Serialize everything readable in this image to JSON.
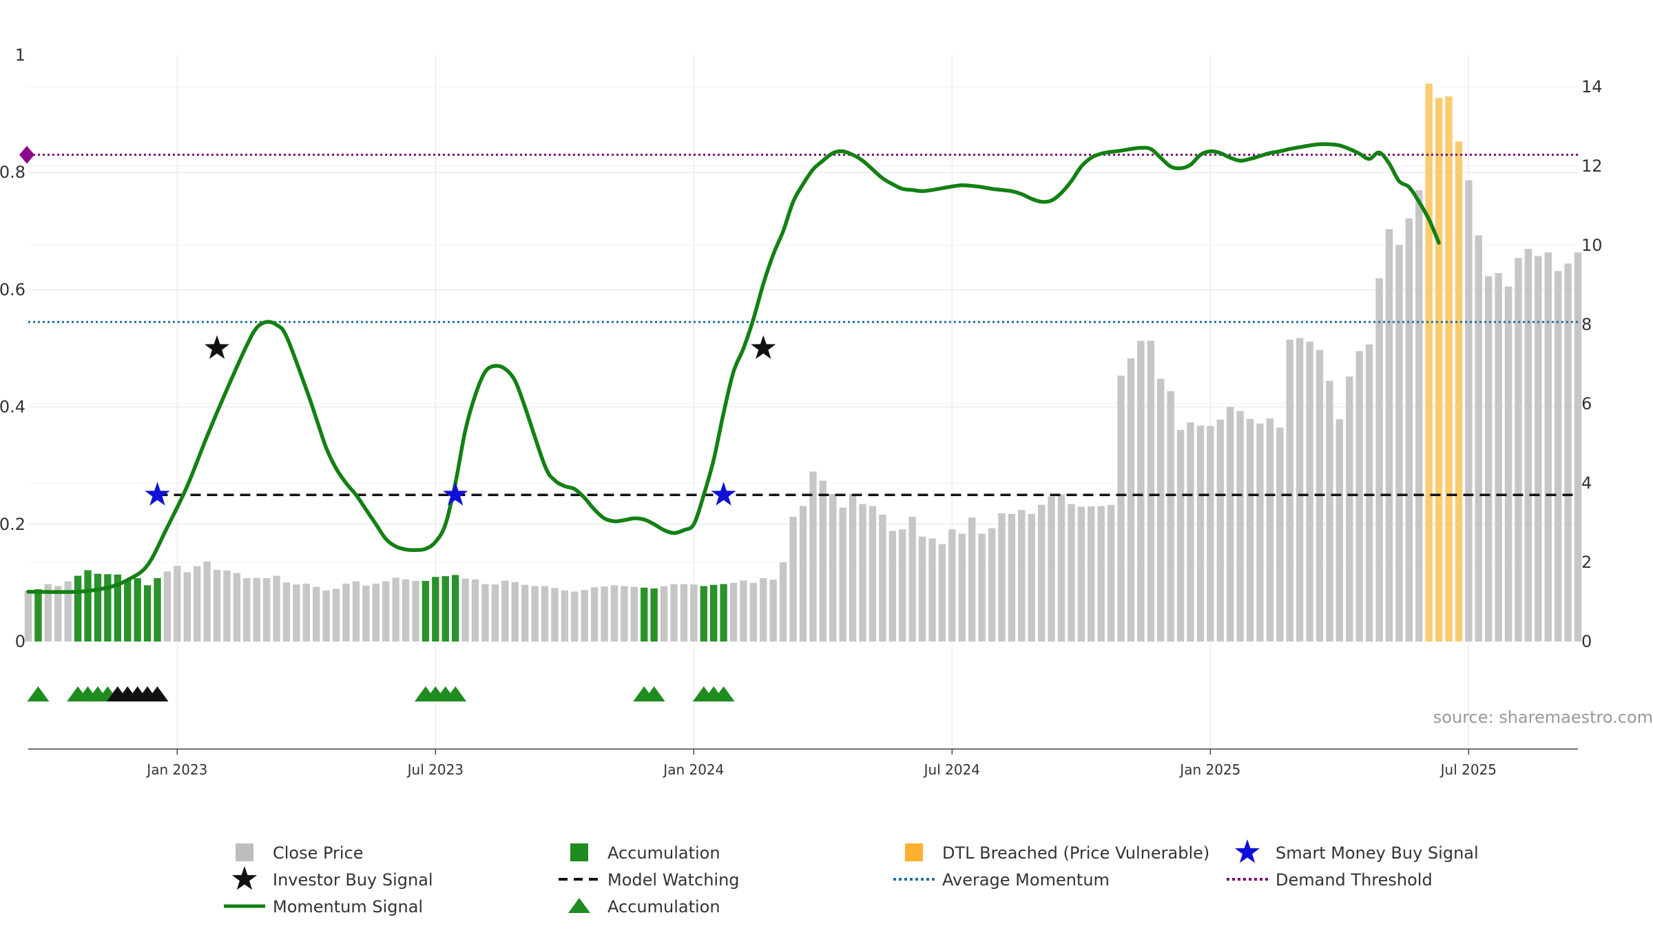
{
  "chart_data": {
    "type": "bar",
    "title": "",
    "source": "source: sharemaestro.com",
    "left_axis": {
      "ylim": [
        0,
        1
      ],
      "ticks": [
        "0",
        "0.2",
        "0.4",
        "0.6",
        "0.8",
        "1"
      ]
    },
    "right_axis": {
      "ylim": [
        0,
        14.8
      ],
      "ticks": [
        "0",
        "2",
        "4",
        "6",
        "8",
        "10",
        "12",
        "14"
      ]
    },
    "x_axis": {
      "ticks": [
        {
          "label": "Jan 2023",
          "index": 15
        },
        {
          "label": "Jul 2023",
          "index": 41
        },
        {
          "label": "Jan 2024",
          "index": 67
        },
        {
          "label": "Jul 2024",
          "index": 93
        },
        {
          "label": "Jan 2025",
          "index": 119
        },
        {
          "label": "Jul 2025",
          "index": 145
        }
      ]
    },
    "weeks": 157,
    "close_price": [
      1.28,
      1.32,
      1.45,
      1.4,
      1.52,
      1.66,
      1.8,
      1.71,
      1.7,
      1.69,
      1.55,
      1.6,
      1.42,
      1.6,
      1.77,
      1.91,
      1.75,
      1.9,
      2.02,
      1.81,
      1.79,
      1.73,
      1.6,
      1.61,
      1.6,
      1.66,
      1.49,
      1.44,
      1.46,
      1.38,
      1.29,
      1.33,
      1.46,
      1.52,
      1.41,
      1.46,
      1.52,
      1.61,
      1.57,
      1.53,
      1.53,
      1.63,
      1.65,
      1.68,
      1.59,
      1.57,
      1.45,
      1.44,
      1.54,
      1.5,
      1.43,
      1.4,
      1.4,
      1.35,
      1.29,
      1.26,
      1.3,
      1.37,
      1.39,
      1.42,
      1.4,
      1.38,
      1.36,
      1.34,
      1.4,
      1.45,
      1.45,
      1.44,
      1.4,
      1.43,
      1.45,
      1.48,
      1.54,
      1.48,
      1.6,
      1.56,
      2.0,
      3.15,
      3.42,
      4.29,
      4.06,
      3.72,
      3.38,
      3.72,
      3.47,
      3.42,
      3.2,
      2.79,
      2.83,
      3.15,
      2.65,
      2.6,
      2.46,
      2.83,
      2.72,
      3.13,
      2.72,
      2.86,
      3.24,
      3.22,
      3.32,
      3.22,
      3.45,
      3.66,
      3.71,
      3.47,
      3.4,
      3.41,
      3.42,
      3.45,
      6.71,
      7.15,
      7.59,
      7.59,
      6.63,
      6.32,
      5.34,
      5.53,
      5.45,
      5.44,
      5.6,
      5.92,
      5.82,
      5.62,
      5.5,
      5.63,
      5.4,
      7.62,
      7.66,
      7.57,
      7.36,
      6.58,
      5.61,
      6.69,
      7.33,
      7.5,
      9.17,
      10.41,
      10.01,
      10.68,
      11.39,
      14.08,
      13.72,
      13.76,
      12.62,
      11.64,
      10.25,
      9.22,
      9.3,
      8.96,
      9.68,
      9.91,
      9.73,
      9.82,
      9.35,
      9.54,
      9.82
    ],
    "bar_categories": {
      "accumulation": [
        1,
        5,
        6,
        7,
        8,
        9,
        10,
        11,
        12,
        13,
        40,
        41,
        42,
        43,
        62,
        63,
        68,
        69,
        70
      ],
      "dtl_breached": [
        141,
        142,
        143,
        144
      ]
    },
    "momentum_signal": [
      [
        0,
        0.085
      ],
      [
        5,
        0.085
      ],
      [
        8,
        0.092
      ],
      [
        10,
        0.105
      ],
      [
        12,
        0.13
      ],
      [
        14,
        0.195
      ],
      [
        16,
        0.265
      ],
      [
        18,
        0.35
      ],
      [
        20,
        0.43
      ],
      [
        22,
        0.505
      ],
      [
        23,
        0.535
      ],
      [
        24,
        0.545
      ],
      [
        25,
        0.54
      ],
      [
        26,
        0.52
      ],
      [
        28,
        0.43
      ],
      [
        29,
        0.38
      ],
      [
        30,
        0.33
      ],
      [
        31,
        0.295
      ],
      [
        32,
        0.27
      ],
      [
        33,
        0.25
      ],
      [
        34,
        0.225
      ],
      [
        35,
        0.2
      ],
      [
        36,
        0.175
      ],
      [
        37,
        0.162
      ],
      [
        38,
        0.157
      ],
      [
        39,
        0.156
      ],
      [
        40,
        0.158
      ],
      [
        41,
        0.17
      ],
      [
        42,
        0.2
      ],
      [
        43,
        0.27
      ],
      [
        44,
        0.36
      ],
      [
        45,
        0.42
      ],
      [
        46,
        0.46
      ],
      [
        47,
        0.47
      ],
      [
        48,
        0.465
      ],
      [
        49,
        0.445
      ],
      [
        50,
        0.4
      ],
      [
        52,
        0.3
      ],
      [
        53,
        0.275
      ],
      [
        54,
        0.265
      ],
      [
        55,
        0.26
      ],
      [
        56,
        0.245
      ],
      [
        57,
        0.225
      ],
      [
        58,
        0.21
      ],
      [
        59,
        0.205
      ],
      [
        60,
        0.207
      ],
      [
        61,
        0.21
      ],
      [
        62,
        0.208
      ],
      [
        63,
        0.2
      ],
      [
        64,
        0.19
      ],
      [
        65,
        0.185
      ],
      [
        66,
        0.19
      ],
      [
        67,
        0.2
      ],
      [
        68,
        0.25
      ],
      [
        69,
        0.31
      ],
      [
        70,
        0.39
      ],
      [
        71,
        0.46
      ],
      [
        72,
        0.5
      ],
      [
        73,
        0.55
      ],
      [
        74,
        0.61
      ],
      [
        75,
        0.66
      ],
      [
        76,
        0.7
      ],
      [
        77,
        0.75
      ],
      [
        78,
        0.78
      ],
      [
        79,
        0.805
      ],
      [
        80,
        0.82
      ],
      [
        81,
        0.833
      ],
      [
        82,
        0.836
      ],
      [
        83,
        0.83
      ],
      [
        84,
        0.82
      ],
      [
        85,
        0.805
      ],
      [
        86,
        0.79
      ],
      [
        87,
        0.78
      ],
      [
        88,
        0.772
      ],
      [
        89,
        0.77
      ],
      [
        90,
        0.768
      ],
      [
        91,
        0.77
      ],
      [
        92,
        0.773
      ],
      [
        93,
        0.776
      ],
      [
        94,
        0.778
      ],
      [
        95,
        0.777
      ],
      [
        96,
        0.775
      ],
      [
        97,
        0.772
      ],
      [
        98,
        0.77
      ],
      [
        99,
        0.768
      ],
      [
        100,
        0.763
      ],
      [
        101,
        0.755
      ],
      [
        102,
        0.75
      ],
      [
        103,
        0.752
      ],
      [
        104,
        0.765
      ],
      [
        105,
        0.785
      ],
      [
        106,
        0.81
      ],
      [
        107,
        0.825
      ],
      [
        108,
        0.832
      ],
      [
        109,
        0.835
      ],
      [
        110,
        0.837
      ],
      [
        111,
        0.84
      ],
      [
        112,
        0.842
      ],
      [
        113,
        0.84
      ],
      [
        114,
        0.825
      ],
      [
        115,
        0.81
      ],
      [
        116,
        0.807
      ],
      [
        117,
        0.813
      ],
      [
        118,
        0.83
      ],
      [
        119,
        0.836
      ],
      [
        120,
        0.833
      ],
      [
        121,
        0.825
      ],
      [
        122,
        0.82
      ],
      [
        123,
        0.823
      ],
      [
        124,
        0.828
      ],
      [
        125,
        0.833
      ],
      [
        126,
        0.836
      ],
      [
        127,
        0.84
      ],
      [
        128,
        0.843
      ],
      [
        129,
        0.846
      ],
      [
        130,
        0.848
      ],
      [
        131,
        0.848
      ],
      [
        132,
        0.846
      ],
      [
        133,
        0.84
      ],
      [
        134,
        0.832
      ],
      [
        135,
        0.823
      ],
      [
        136,
        0.834
      ],
      [
        137,
        0.815
      ],
      [
        138,
        0.785
      ],
      [
        139,
        0.775
      ],
      [
        140,
        0.75
      ],
      [
        141,
        0.72
      ],
      [
        142,
        0.68
      ]
    ],
    "model_watching": 0.25,
    "average_momentum": 0.545,
    "demand_threshold": 0.83,
    "investor_buy_signals": [
      [
        19,
        0.5
      ],
      [
        74,
        0.5
      ]
    ],
    "smart_money_buy_signals": [
      [
        13,
        0.25
      ],
      [
        43,
        0.25
      ],
      [
        70,
        0.25
      ]
    ],
    "accumulation_markers": [
      {
        "index": 1,
        "color": "#1e8c1e"
      },
      {
        "index": 5,
        "color": "#1e8c1e"
      },
      {
        "index": 6,
        "color": "#1e8c1e"
      },
      {
        "index": 7,
        "color": "#1e8c1e"
      },
      {
        "index": 8,
        "color": "#1e8c1e"
      },
      {
        "index": 9,
        "color": "#111111"
      },
      {
        "index": 10,
        "color": "#111111"
      },
      {
        "index": 11,
        "color": "#111111"
      },
      {
        "index": 12,
        "color": "#111111"
      },
      {
        "index": 13,
        "color": "#111111"
      },
      {
        "index": 40,
        "color": "#1e8c1e"
      },
      {
        "index": 41,
        "color": "#1e8c1e"
      },
      {
        "index": 42,
        "color": "#1e8c1e"
      },
      {
        "index": 43,
        "color": "#1e8c1e"
      },
      {
        "index": 62,
        "color": "#1e8c1e"
      },
      {
        "index": 63,
        "color": "#1e8c1e"
      },
      {
        "index": 68,
        "color": "#1e8c1e"
      },
      {
        "index": 69,
        "color": "#1e8c1e"
      },
      {
        "index": 70,
        "color": "#1e8c1e"
      }
    ],
    "colors": {
      "close_price": "#c6c6c6",
      "accumulation": "#2a922a",
      "dtl_breached": "#fbcb6e",
      "momentum": "#138013",
      "model_watching": "#111111",
      "average_momentum": "#1f6f9f",
      "demand_threshold": "#7a0a6e",
      "smart_money": "#1010d8",
      "investor": "#111111",
      "demand_marker": "#8a0a8a"
    },
    "legend": [
      {
        "label": "Close Price",
        "kind": "square",
        "color": "#bdbdbd"
      },
      {
        "label": "Accumulation",
        "kind": "square",
        "color": "#1e8c1e"
      },
      {
        "label": "DTL Breached (Price Vulnerable)",
        "kind": "square",
        "color": "#fbb12f"
      },
      {
        "label": "Smart Money Buy Signal",
        "kind": "star",
        "color": "#1010d8"
      },
      {
        "label": "Investor Buy Signal",
        "kind": "star",
        "color": "#111111"
      },
      {
        "label": "Model Watching",
        "kind": "dash",
        "color": "#111111"
      },
      {
        "label": "Average Momentum",
        "kind": "dot",
        "color": "#1f6f9f"
      },
      {
        "label": "Demand Threshold",
        "kind": "dot",
        "color": "#7a0a6e"
      },
      {
        "label": "Momentum Signal",
        "kind": "line",
        "color": "#138013"
      },
      {
        "label": "Accumulation",
        "kind": "triangle",
        "color": "#1e8c1e"
      }
    ]
  }
}
